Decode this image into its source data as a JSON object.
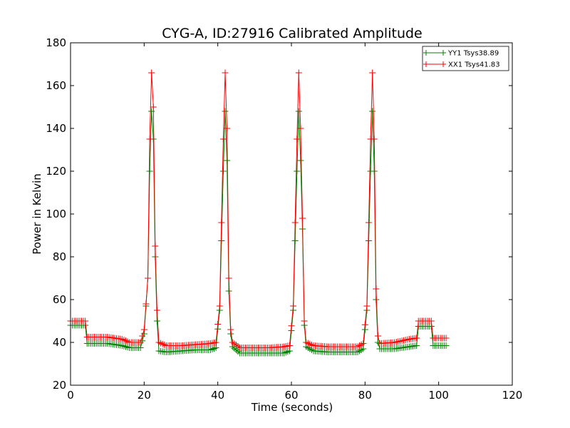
{
  "chart_data": {
    "type": "line",
    "title": "CYG-A, ID:27916 Calibrated Amplitude",
    "xlabel": "Time (seconds)",
    "ylabel": "Power in Kelvin",
    "xlim": [
      0,
      120
    ],
    "ylim": [
      20,
      180
    ],
    "xticks": [
      0,
      20,
      40,
      60,
      80,
      100,
      120
    ],
    "yticks": [
      20,
      40,
      60,
      80,
      100,
      120,
      140,
      160,
      180
    ],
    "xtick_labels": [
      "0",
      "20",
      "40",
      "60",
      "80",
      "100",
      "120"
    ],
    "ytick_labels": [
      "20",
      "40",
      "60",
      "80",
      "100",
      "120",
      "140",
      "160",
      "180"
    ],
    "grid": false,
    "legend_position": "top-right",
    "marker": "+",
    "series": [
      {
        "name": "YY1 Tsys38.89",
        "color": "#008000",
        "points": [
          [
            0,
            48
          ],
          [
            4,
            48
          ],
          [
            4.5,
            39.5
          ],
          [
            10,
            39.5
          ],
          [
            14,
            38.5
          ],
          [
            16,
            37.5
          ],
          [
            19,
            37.5
          ],
          [
            20,
            44
          ],
          [
            21,
            70
          ],
          [
            21.5,
            120
          ],
          [
            22,
            148
          ],
          [
            22.5,
            135
          ],
          [
            23,
            80
          ],
          [
            23.5,
            50
          ],
          [
            24,
            36
          ],
          [
            26,
            35.5
          ],
          [
            30,
            36
          ],
          [
            34,
            36.5
          ],
          [
            38,
            36.5
          ],
          [
            39.5,
            37.5
          ],
          [
            40.5,
            55
          ],
          [
            41.5,
            120
          ],
          [
            42,
            148
          ],
          [
            42.5,
            125
          ],
          [
            43,
            64
          ],
          [
            43.5,
            44
          ],
          [
            44,
            38
          ],
          [
            46,
            35
          ],
          [
            50,
            35
          ],
          [
            54,
            35
          ],
          [
            58,
            35
          ],
          [
            59.5,
            36
          ],
          [
            60.5,
            55
          ],
          [
            61.5,
            120
          ],
          [
            62,
            148
          ],
          [
            62.5,
            125
          ],
          [
            63,
            93
          ],
          [
            63.5,
            48
          ],
          [
            64,
            38
          ],
          [
            66,
            36
          ],
          [
            70,
            35.5
          ],
          [
            74,
            35.5
          ],
          [
            78,
            35.5
          ],
          [
            79.5,
            37
          ],
          [
            80.5,
            55
          ],
          [
            81.5,
            120
          ],
          [
            82,
            148
          ],
          [
            82.5,
            120
          ],
          [
            83,
            60
          ],
          [
            83.5,
            40
          ],
          [
            84,
            37
          ],
          [
            88,
            37
          ],
          [
            92,
            38
          ],
          [
            94,
            38.5
          ],
          [
            94.5,
            47.5
          ],
          [
            98,
            47.5
          ],
          [
            98.5,
            38.5
          ],
          [
            102,
            38.5
          ]
        ]
      },
      {
        "name": "XX1 Tsys41.83",
        "color": "#ff0000",
        "points": [
          [
            0,
            50
          ],
          [
            4,
            50
          ],
          [
            4.5,
            42.5
          ],
          [
            10,
            42.5
          ],
          [
            14,
            41.5
          ],
          [
            16,
            40
          ],
          [
            19,
            40
          ],
          [
            20,
            46
          ],
          [
            21,
            70
          ],
          [
            21.5,
            135
          ],
          [
            22,
            166
          ],
          [
            22.5,
            150
          ],
          [
            23,
            85
          ],
          [
            23.5,
            55
          ],
          [
            24,
            40
          ],
          [
            26,
            38.5
          ],
          [
            30,
            38.5
          ],
          [
            34,
            39
          ],
          [
            38,
            39.5
          ],
          [
            39.5,
            40
          ],
          [
            40.5,
            57
          ],
          [
            41.5,
            135
          ],
          [
            42,
            166
          ],
          [
            42.5,
            140
          ],
          [
            43,
            70
          ],
          [
            43.5,
            46
          ],
          [
            44,
            40
          ],
          [
            46,
            37.5
          ],
          [
            50,
            37.5
          ],
          [
            54,
            37.5
          ],
          [
            58,
            38
          ],
          [
            59.5,
            38.5
          ],
          [
            60.5,
            57
          ],
          [
            61.5,
            135
          ],
          [
            62,
            166
          ],
          [
            62.5,
            140
          ],
          [
            63,
            98
          ],
          [
            63.5,
            50
          ],
          [
            64,
            40
          ],
          [
            66,
            38.5
          ],
          [
            70,
            38
          ],
          [
            74,
            38
          ],
          [
            78,
            38
          ],
          [
            79.5,
            39.5
          ],
          [
            80.5,
            57
          ],
          [
            81.5,
            135
          ],
          [
            82,
            166
          ],
          [
            82.5,
            135
          ],
          [
            83,
            65
          ],
          [
            83.5,
            43
          ],
          [
            84,
            39.5
          ],
          [
            88,
            40
          ],
          [
            92,
            41.5
          ],
          [
            94,
            42
          ],
          [
            94.5,
            50
          ],
          [
            98,
            50
          ],
          [
            98.5,
            42
          ],
          [
            102,
            42
          ]
        ]
      }
    ]
  }
}
